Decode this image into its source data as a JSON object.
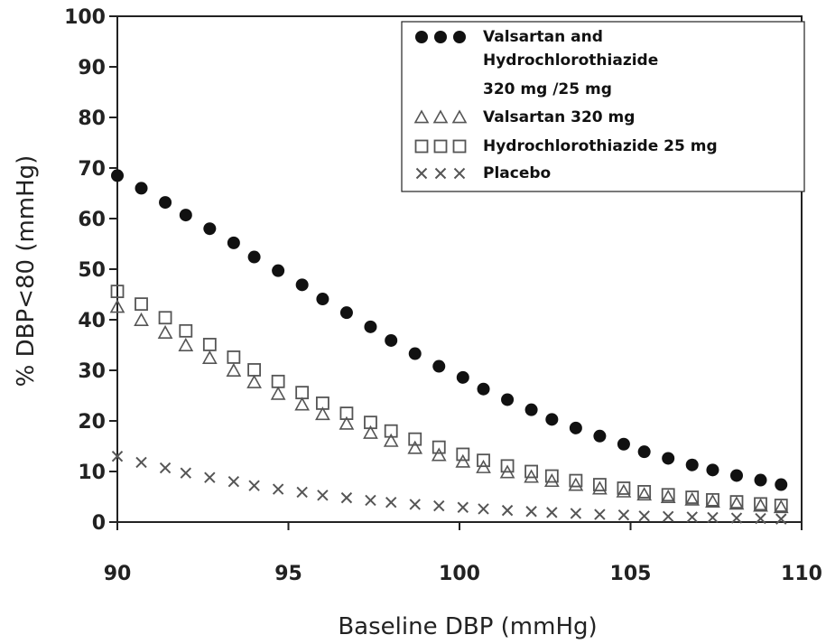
{
  "chart_data": {
    "type": "scatter",
    "xlabel": "Baseline DBP (mmHg)",
    "ylabel": "% DBP<80 (mmHg)",
    "xlim": [
      90,
      110
    ],
    "ylim": [
      0,
      100
    ],
    "xticks": [
      "90",
      "95",
      "100",
      "105",
      "110"
    ],
    "yticks": [
      "0",
      "10",
      "20",
      "30",
      "40",
      "50",
      "60",
      "70",
      "80",
      "90",
      "100"
    ],
    "grid": false,
    "legend_position": "top-right",
    "series": [
      {
        "name": "Valsartan and Hydrochlorothiazide 320 mg /25 mg",
        "legend_lines": [
          "Valsartan and",
          "Hydrochlorothiazide",
          "320 mg /25 mg"
        ],
        "marker": "filled-circle",
        "color": "#111111",
        "x": [
          90,
          90.7,
          91.4,
          92.0,
          92.7,
          93.4,
          94.0,
          94.7,
          95.4,
          96.0,
          96.7,
          97.4,
          98.0,
          98.7,
          99.4,
          100.1,
          100.7,
          101.4,
          102.1,
          102.7,
          103.4,
          104.1,
          104.8,
          105.4,
          106.1,
          106.8,
          107.4,
          108.1,
          108.8,
          109.4
        ],
        "y": [
          68.5,
          66.0,
          63.2,
          60.7,
          58.0,
          55.2,
          52.4,
          49.7,
          46.9,
          44.1,
          41.4,
          38.6,
          35.9,
          33.3,
          30.8,
          28.6,
          26.3,
          24.2,
          22.2,
          20.3,
          18.6,
          17.0,
          15.4,
          13.9,
          12.6,
          11.3,
          10.3,
          9.2,
          8.3,
          7.4
        ]
      },
      {
        "name": "Valsartan 320 mg",
        "legend_lines": [
          "Valsartan 320 mg"
        ],
        "marker": "open-triangle",
        "color": "#555555",
        "x": [
          90,
          90.7,
          91.4,
          92.0,
          92.7,
          93.4,
          94.0,
          94.7,
          95.4,
          96.0,
          96.7,
          97.4,
          98.0,
          98.7,
          99.4,
          100.1,
          100.7,
          101.4,
          102.1,
          102.7,
          103.4,
          104.1,
          104.8,
          105.4,
          106.1,
          106.8,
          107.4,
          108.1,
          108.8,
          109.4
        ],
        "y": [
          42.5,
          39.9,
          37.4,
          34.9,
          32.4,
          29.9,
          27.6,
          25.3,
          23.2,
          21.3,
          19.4,
          17.6,
          16.0,
          14.6,
          13.2,
          11.9,
          10.8,
          9.8,
          8.9,
          8.1,
          7.3,
          6.6,
          6.0,
          5.4,
          4.9,
          4.4,
          4.0,
          3.6,
          3.2,
          2.9
        ]
      },
      {
        "name": "Hydrochlorothiazide 25 mg",
        "legend_lines": [
          "Hydrochlorothiazide 25 mg"
        ],
        "marker": "open-square",
        "color": "#555555",
        "x": [
          90,
          90.7,
          91.4,
          92.0,
          92.7,
          93.4,
          94.0,
          94.7,
          95.4,
          96.0,
          96.7,
          97.4,
          98.0,
          98.7,
          99.4,
          100.1,
          100.7,
          101.4,
          102.1,
          102.7,
          103.4,
          104.1,
          104.8,
          105.4,
          106.1,
          106.8,
          107.4,
          108.1,
          108.8,
          109.4
        ],
        "y": [
          45.6,
          43.1,
          40.4,
          37.8,
          35.1,
          32.6,
          30.1,
          27.8,
          25.6,
          23.5,
          21.5,
          19.7,
          18.0,
          16.4,
          14.8,
          13.4,
          12.2,
          11.1,
          10.0,
          9.1,
          8.2,
          7.4,
          6.7,
          6.0,
          5.4,
          4.9,
          4.4,
          4.0,
          3.6,
          3.3
        ]
      },
      {
        "name": "Placebo",
        "legend_lines": [
          "Placebo"
        ],
        "marker": "x",
        "color": "#555555",
        "x": [
          90,
          90.7,
          91.4,
          92.0,
          92.7,
          93.4,
          94.0,
          94.7,
          95.4,
          96.0,
          96.7,
          97.4,
          98.0,
          98.7,
          99.4,
          100.1,
          100.7,
          101.4,
          102.1,
          102.7,
          103.4,
          104.1,
          104.8,
          105.4,
          106.1,
          106.8,
          107.4,
          108.1,
          108.8,
          109.4
        ],
        "y": [
          13.0,
          11.8,
          10.7,
          9.7,
          8.8,
          8.0,
          7.2,
          6.5,
          5.9,
          5.3,
          4.8,
          4.3,
          3.9,
          3.5,
          3.2,
          2.9,
          2.6,
          2.3,
          2.1,
          1.9,
          1.7,
          1.5,
          1.4,
          1.2,
          1.1,
          1.0,
          0.9,
          0.8,
          0.7,
          0.6
        ]
      }
    ]
  }
}
